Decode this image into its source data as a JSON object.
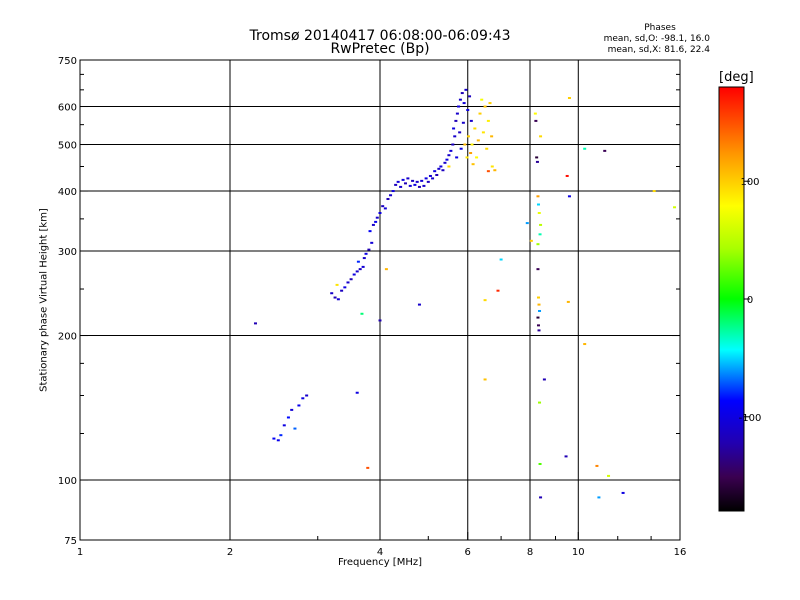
{
  "chart_data": {
    "type": "scatter",
    "title": "Tromsø 20140417 06:08:00-06:09:43",
    "subtitle": "RwPretec (Bp)",
    "xlabel": "Frequency [MHz]",
    "ylabel": "Stationary phase Virtual Height [km]",
    "x_scale": "log",
    "y_scale": "log",
    "xlim": [
      1,
      16
    ],
    "ylim": [
      75,
      750
    ],
    "x_ticks": [
      1,
      2,
      4,
      6,
      8,
      10,
      16
    ],
    "y_ticks": [
      75,
      100,
      200,
      300,
      400,
      500,
      600,
      750
    ],
    "grid": true,
    "legend": {
      "title": "Phases",
      "mean_o": "mean, sd,O: -98.1, 16.0",
      "mean_x": "mean, sd,X:  81.6, 22.4"
    },
    "colorbar": {
      "label": "[deg]",
      "range": [
        -180,
        180
      ],
      "ticks": [
        100,
        0,
        -100
      ]
    },
    "points": [
      {
        "f": 2.25,
        "h": 212,
        "p": -120
      },
      {
        "f": 2.45,
        "h": 122,
        "p": -90
      },
      {
        "f": 2.5,
        "h": 121,
        "p": -95
      },
      {
        "f": 2.53,
        "h": 124,
        "p": -80
      },
      {
        "f": 2.57,
        "h": 130,
        "p": -100
      },
      {
        "f": 2.62,
        "h": 135,
        "p": -85
      },
      {
        "f": 2.66,
        "h": 140,
        "p": -105
      },
      {
        "f": 2.7,
        "h": 128,
        "p": -70
      },
      {
        "f": 2.75,
        "h": 143,
        "p": -95
      },
      {
        "f": 2.8,
        "h": 148,
        "p": -100
      },
      {
        "f": 2.85,
        "h": 150,
        "p": -110
      },
      {
        "f": 3.2,
        "h": 245,
        "p": -110
      },
      {
        "f": 3.25,
        "h": 240,
        "p": -120
      },
      {
        "f": 3.28,
        "h": 255,
        "p": 90
      },
      {
        "f": 3.3,
        "h": 238,
        "p": -105
      },
      {
        "f": 3.35,
        "h": 248,
        "p": -115
      },
      {
        "f": 3.4,
        "h": 252,
        "p": -100
      },
      {
        "f": 3.45,
        "h": 258,
        "p": -110
      },
      {
        "f": 3.5,
        "h": 262,
        "p": -120
      },
      {
        "f": 3.55,
        "h": 268,
        "p": -100
      },
      {
        "f": 3.6,
        "h": 272,
        "p": -110
      },
      {
        "f": 3.62,
        "h": 285,
        "p": -80
      },
      {
        "f": 3.65,
        "h": 275,
        "p": -115
      },
      {
        "f": 3.68,
        "h": 222,
        "p": -20
      },
      {
        "f": 3.7,
        "h": 278,
        "p": -105
      },
      {
        "f": 3.72,
        "h": 290,
        "p": -110
      },
      {
        "f": 3.75,
        "h": 296,
        "p": -100
      },
      {
        "f": 3.78,
        "h": 106,
        "p": 150
      },
      {
        "f": 3.8,
        "h": 302,
        "p": -120
      },
      {
        "f": 3.82,
        "h": 330,
        "p": -90
      },
      {
        "f": 3.85,
        "h": 312,
        "p": -105
      },
      {
        "f": 3.88,
        "h": 340,
        "p": -110
      },
      {
        "f": 3.92,
        "h": 345,
        "p": -95
      },
      {
        "f": 3.6,
        "h": 152,
        "p": -100
      },
      {
        "f": 3.95,
        "h": 352,
        "p": -110
      },
      {
        "f": 4.0,
        "h": 215,
        "p": -120
      },
      {
        "f": 4.0,
        "h": 360,
        "p": -100
      },
      {
        "f": 4.05,
        "h": 372,
        "p": -115
      },
      {
        "f": 4.1,
        "h": 368,
        "p": -105
      },
      {
        "f": 4.12,
        "h": 275,
        "p": 110
      },
      {
        "f": 4.15,
        "h": 385,
        "p": -120
      },
      {
        "f": 4.2,
        "h": 392,
        "p": -110
      },
      {
        "f": 4.25,
        "h": 400,
        "p": -100
      },
      {
        "f": 4.3,
        "h": 412,
        "p": -115
      },
      {
        "f": 4.35,
        "h": 418,
        "p": -105
      },
      {
        "f": 4.4,
        "h": 408,
        "p": -110
      },
      {
        "f": 4.45,
        "h": 422,
        "p": -100
      },
      {
        "f": 4.5,
        "h": 415,
        "p": -120
      },
      {
        "f": 4.55,
        "h": 425,
        "p": -110
      },
      {
        "f": 4.6,
        "h": 410,
        "p": -105
      },
      {
        "f": 4.65,
        "h": 420,
        "p": -115
      },
      {
        "f": 4.7,
        "h": 412,
        "p": -100
      },
      {
        "f": 4.75,
        "h": 418,
        "p": -110
      },
      {
        "f": 4.8,
        "h": 232,
        "p": -110
      },
      {
        "f": 4.8,
        "h": 408,
        "p": -120
      },
      {
        "f": 4.85,
        "h": 420,
        "p": -105
      },
      {
        "f": 4.9,
        "h": 410,
        "p": -110
      },
      {
        "f": 4.95,
        "h": 425,
        "p": -100
      },
      {
        "f": 5.0,
        "h": 418,
        "p": -115
      },
      {
        "f": 5.05,
        "h": 430,
        "p": -105
      },
      {
        "f": 5.1,
        "h": 425,
        "p": -110
      },
      {
        "f": 5.15,
        "h": 440,
        "p": -100
      },
      {
        "f": 5.2,
        "h": 432,
        "p": -120
      },
      {
        "f": 5.25,
        "h": 445,
        "p": -110
      },
      {
        "f": 5.3,
        "h": 450,
        "p": -105
      },
      {
        "f": 5.35,
        "h": 442,
        "p": -115
      },
      {
        "f": 5.4,
        "h": 458,
        "p": -110
      },
      {
        "f": 5.45,
        "h": 465,
        "p": -100
      },
      {
        "f": 5.5,
        "h": 475,
        "p": -110
      },
      {
        "f": 5.5,
        "h": 450,
        "p": 95
      },
      {
        "f": 5.55,
        "h": 485,
        "p": -105
      },
      {
        "f": 5.6,
        "h": 500,
        "p": -115
      },
      {
        "f": 5.62,
        "h": 540,
        "p": -100
      },
      {
        "f": 5.65,
        "h": 520,
        "p": -110
      },
      {
        "f": 5.68,
        "h": 560,
        "p": -120
      },
      {
        "f": 5.7,
        "h": 470,
        "p": -100
      },
      {
        "f": 5.72,
        "h": 580,
        "p": -110
      },
      {
        "f": 5.75,
        "h": 600,
        "p": -105
      },
      {
        "f": 5.78,
        "h": 530,
        "p": -115
      },
      {
        "f": 5.8,
        "h": 620,
        "p": -110
      },
      {
        "f": 5.82,
        "h": 490,
        "p": -100
      },
      {
        "f": 5.85,
        "h": 640,
        "p": -120
      },
      {
        "f": 5.88,
        "h": 555,
        "p": -110
      },
      {
        "f": 5.9,
        "h": 610,
        "p": -105
      },
      {
        "f": 5.92,
        "h": 500,
        "p": 110
      },
      {
        "f": 5.95,
        "h": 650,
        "p": -110
      },
      {
        "f": 5.98,
        "h": 470,
        "p": 90
      },
      {
        "f": 6.0,
        "h": 590,
        "p": -100
      },
      {
        "f": 6.02,
        "h": 520,
        "p": 100
      },
      {
        "f": 6.05,
        "h": 630,
        "p": -115
      },
      {
        "f": 6.08,
        "h": 480,
        "p": 120
      },
      {
        "f": 6.1,
        "h": 560,
        "p": -110
      },
      {
        "f": 6.12,
        "h": 500,
        "p": 85
      },
      {
        "f": 6.15,
        "h": 455,
        "p": 105
      },
      {
        "f": 6.2,
        "h": 540,
        "p": 95
      },
      {
        "f": 6.25,
        "h": 470,
        "p": 80
      },
      {
        "f": 6.3,
        "h": 510,
        "p": 110
      },
      {
        "f": 6.35,
        "h": 580,
        "p": 100
      },
      {
        "f": 6.4,
        "h": 620,
        "p": 75
      },
      {
        "f": 6.45,
        "h": 530,
        "p": 90
      },
      {
        "f": 6.5,
        "h": 600,
        "p": 105
      },
      {
        "f": 6.55,
        "h": 490,
        "p": 95
      },
      {
        "f": 6.6,
        "h": 560,
        "p": 85
      },
      {
        "f": 6.65,
        "h": 610,
        "p": 100
      },
      {
        "f": 6.7,
        "h": 520,
        "p": 110
      },
      {
        "f": 6.72,
        "h": 450,
        "p": 90
      },
      {
        "f": 6.5,
        "h": 237,
        "p": 95
      },
      {
        "f": 6.5,
        "h": 162,
        "p": 105
      },
      {
        "f": 6.6,
        "h": 440,
        "p": 150
      },
      {
        "f": 6.8,
        "h": 442,
        "p": 110
      },
      {
        "f": 6.9,
        "h": 248,
        "p": 165
      },
      {
        "f": 7.0,
        "h": 288,
        "p": -50
      },
      {
        "f": 7.9,
        "h": 343,
        "p": -60
      },
      {
        "f": 8.05,
        "h": 315,
        "p": 100
      },
      {
        "f": 8.2,
        "h": 580,
        "p": 80
      },
      {
        "f": 8.22,
        "h": 560,
        "p": -150
      },
      {
        "f": 8.25,
        "h": 470,
        "p": -160
      },
      {
        "f": 8.28,
        "h": 460,
        "p": -130
      },
      {
        "f": 8.3,
        "h": 390,
        "p": 120
      },
      {
        "f": 8.32,
        "h": 375,
        "p": -50
      },
      {
        "f": 8.35,
        "h": 360,
        "p": 70
      },
      {
        "f": 8.38,
        "h": 325,
        "p": -30
      },
      {
        "f": 8.3,
        "h": 275,
        "p": -150
      },
      {
        "f": 8.32,
        "h": 240,
        "p": 100
      },
      {
        "f": 8.34,
        "h": 232,
        "p": 110
      },
      {
        "f": 8.36,
        "h": 225,
        "p": -60
      },
      {
        "f": 8.3,
        "h": 218,
        "p": -160
      },
      {
        "f": 8.32,
        "h": 210,
        "p": -150
      },
      {
        "f": 8.34,
        "h": 205,
        "p": -130
      },
      {
        "f": 8.36,
        "h": 145,
        "p": 40
      },
      {
        "f": 8.38,
        "h": 108,
        "p": 20
      },
      {
        "f": 8.4,
        "h": 92,
        "p": -120
      },
      {
        "f": 8.55,
        "h": 162,
        "p": -120
      },
      {
        "f": 8.3,
        "h": 310,
        "p": 40
      },
      {
        "f": 8.4,
        "h": 340,
        "p": 50
      },
      {
        "f": 8.4,
        "h": 520,
        "p": 95
      },
      {
        "f": 9.5,
        "h": 430,
        "p": 175
      },
      {
        "f": 9.6,
        "h": 390,
        "p": -100
      },
      {
        "f": 9.55,
        "h": 235,
        "p": 110
      },
      {
        "f": 9.45,
        "h": 112,
        "p": -120
      },
      {
        "f": 9.6,
        "h": 625,
        "p": 100
      },
      {
        "f": 10.3,
        "h": 490,
        "p": -30
      },
      {
        "f": 10.3,
        "h": 192,
        "p": 110
      },
      {
        "f": 10.9,
        "h": 107,
        "p": 130
      },
      {
        "f": 11.3,
        "h": 485,
        "p": -150
      },
      {
        "f": 11.5,
        "h": 102,
        "p": 60
      },
      {
        "f": 11.0,
        "h": 92,
        "p": -60
      },
      {
        "f": 12.3,
        "h": 94,
        "p": -100
      },
      {
        "f": 14.2,
        "h": 400,
        "p": 95
      },
      {
        "f": 15.6,
        "h": 370,
        "p": 60
      }
    ]
  }
}
